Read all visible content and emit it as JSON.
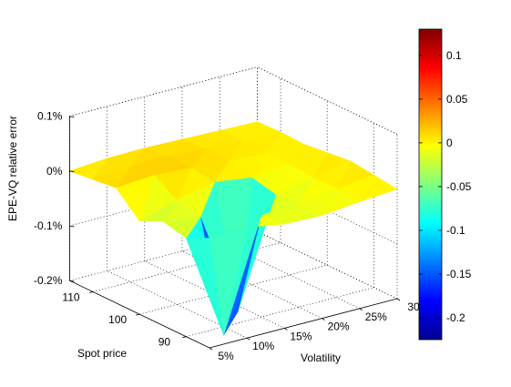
{
  "chart_data": {
    "type": "surface3d",
    "title": "",
    "zlabel": "EPE-VQ relative error",
    "xlabel": "Volatility",
    "ylabel": "Spot price",
    "z_ticks": [
      "0.1%",
      "0%",
      "-0.1%",
      "-0.2%"
    ],
    "z_tick_values": [
      0.1,
      0.0,
      -0.1,
      -0.2
    ],
    "x_ticks": [
      "5%",
      "10%",
      "15%",
      "20%",
      "25%",
      "30"
    ],
    "y_ticks": [
      "90",
      "100",
      "110"
    ],
    "zlim": [
      -0.2,
      0.1
    ],
    "grid": true,
    "colormap": "jet",
    "colorbar": {
      "ticks": [
        "0.1",
        "0.05",
        "0",
        "-0.05",
        "-0.1",
        "-0.15",
        "-0.2"
      ],
      "tick_values": [
        0.1,
        0.05,
        0.0,
        -0.05,
        -0.1,
        -0.15,
        -0.2
      ],
      "range": [
        -0.225,
        0.13
      ]
    },
    "surface": {
      "vol": [
        5,
        10,
        15,
        20,
        25,
        30
      ],
      "spot": [
        85,
        90,
        95,
        100,
        105,
        110,
        115
      ],
      "z": [
        [
          0.0,
          0.002,
          -0.01,
          -0.012,
          -0.005,
          0.0
        ],
        [
          -0.02,
          -0.215,
          -0.015,
          -0.01,
          -0.002,
          0.005
        ],
        [
          -0.01,
          -0.02,
          -0.21,
          -0.015,
          -0.003,
          0.01
        ],
        [
          -0.03,
          -0.01,
          0.005,
          -0.005,
          0.002,
          0.005
        ],
        [
          0.01,
          0.015,
          0.01,
          0.005,
          0.002,
          0.0
        ],
        [
          0.005,
          0.01,
          0.012,
          0.008,
          0.005,
          0.002
        ],
        [
          0.0,
          0.005,
          0.006,
          0.004,
          0.002,
          0.0
        ]
      ]
    }
  }
}
